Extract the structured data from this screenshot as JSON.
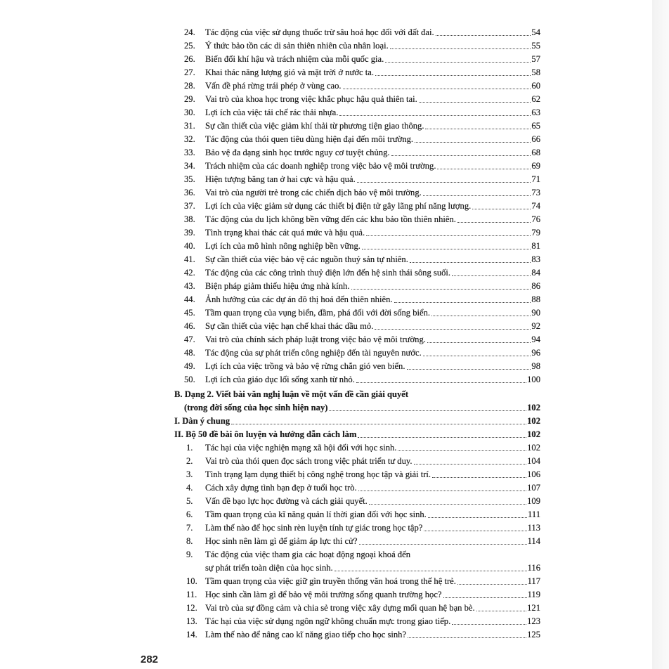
{
  "part1_items": [
    {
      "num": "24.",
      "text": "Tác động của việc sử dụng thuốc trừ sâu hoá học đối với đất đai.",
      "page": "54"
    },
    {
      "num": "25.",
      "text": "Ý thức bảo tồn các di sản thiên nhiên của nhân loại.",
      "page": "55"
    },
    {
      "num": "26.",
      "text": "Biến đổi khí hậu và trách nhiệm của mỗi quốc gia.",
      "page": "57"
    },
    {
      "num": "27.",
      "text": "Khai thác năng lượng gió và mặt trời ở nước ta.",
      "page": "58"
    },
    {
      "num": "28.",
      "text": "Vấn đề phá rừng trái phép ở vùng cao.",
      "page": "60"
    },
    {
      "num": "29.",
      "text": "Vai trò của khoa học trong việc khắc phục hậu quả thiên tai.",
      "page": "62"
    },
    {
      "num": "30.",
      "text": "Lợi ích của việc tái chế rác thải nhựa.",
      "page": "63"
    },
    {
      "num": "31.",
      "text": "Sự cần thiết của việc giảm khí thải từ phương tiện giao thông.",
      "page": "65"
    },
    {
      "num": "32.",
      "text": "Tác động của thói quen tiêu dùng hiện đại đến môi trường.",
      "page": "66"
    },
    {
      "num": "33.",
      "text": "Bảo vệ đa dạng sinh học trước nguy cơ tuyệt chủng.",
      "page": "68"
    },
    {
      "num": "34.",
      "text": "Trách nhiệm của các doanh nghiệp trong việc bảo vệ môi trường.",
      "page": "69"
    },
    {
      "num": "35.",
      "text": "Hiện tượng băng tan ở hai cực và hậu quả.",
      "page": "71"
    },
    {
      "num": "36.",
      "text": "Vai trò của người trẻ trong các chiến dịch bảo vệ môi trường.",
      "page": "73"
    },
    {
      "num": "37.",
      "text": "Lợi ích của việc giảm sử dụng các thiết bị điện tử gây lãng phí năng lượng.",
      "page": "74"
    },
    {
      "num": "38.",
      "text": "Tác động của du lịch không bền vững đến các khu bảo tồn thiên nhiên.",
      "page": "76"
    },
    {
      "num": "39.",
      "text": "Tình trạng khai thác cát quá mức và hậu quả.",
      "page": "79"
    },
    {
      "num": "40.",
      "text": "Lợi ích của mô hình nông nghiệp bền vững.",
      "page": "81"
    },
    {
      "num": "41.",
      "text": "Sự cần thiết của việc bảo vệ các nguồn thuỷ sản tự nhiên.",
      "page": "83"
    },
    {
      "num": "42.",
      "text": "Tác động của các công trình thuỷ điện lớn đến hệ sinh thái sông suối.",
      "page": "84"
    },
    {
      "num": "43.",
      "text": "Biện pháp giảm thiểu hiệu ứng nhà kính.",
      "page": "86"
    },
    {
      "num": "44.",
      "text": "Ảnh hưởng của các dự án đô thị hoá đến thiên nhiên.",
      "page": "88"
    },
    {
      "num": "45.",
      "text": "Tầm quan trọng của vụng biển, đầm, phá đối với đời sống biển.",
      "page": "90"
    },
    {
      "num": "46.",
      "text": "Sự cần thiết của việc hạn chế khai thác dầu mỏ.",
      "page": "92"
    },
    {
      "num": "47.",
      "text": "Vai trò của chính sách pháp luật trong việc bảo vệ môi trường.",
      "page": "94"
    },
    {
      "num": "48.",
      "text": "Tác động của sự phát triển công nghiệp đến tài nguyên nước.",
      "page": "96"
    },
    {
      "num": "49.",
      "text": "Lợi ích của việc trồng và bảo vệ rừng chắn gió ven biển.",
      "page": "98"
    },
    {
      "num": "50.",
      "text": "Lợi ích của giáo dục lối sống xanh từ nhỏ.",
      "page": "100"
    }
  ],
  "section_b": {
    "line1": "B. Dạng 2. Viết bài văn nghị luận về một vấn đề cần giải quyết",
    "line2": "(trong đời sống của học sinh hiện nay)",
    "page": "102"
  },
  "section_i": {
    "text": "I. Dàn ý chung",
    "page": "102"
  },
  "section_ii": {
    "text": "II. Bộ 50 đề bài ôn luyện và hướng dẫn cách làm",
    "page": "102"
  },
  "part2_items": [
    {
      "num": "1.",
      "text": "Tác hại của việc nghiện mạng xã hội đối với học sinh.",
      "page": "102"
    },
    {
      "num": "2.",
      "text": "Vai trò của thói quen đọc sách trong việc phát triển tư duy.",
      "page": "104"
    },
    {
      "num": "3.",
      "text": "Tình trạng lạm dụng thiết bị công nghệ trong học tập và giải trí.",
      "page": "106"
    },
    {
      "num": "4.",
      "text": "Cách xây dựng tình bạn đẹp ở tuổi học trò.",
      "page": "107"
    },
    {
      "num": "5.",
      "text": "Vấn đề bạo lực học đường và cách giải quyết.",
      "page": "109"
    },
    {
      "num": "6.",
      "text": "Tầm quan trọng của kĩ năng quản lí thời gian đối với học sinh.",
      "page": "111"
    },
    {
      "num": "7.",
      "text": "Làm thế nào để học sinh rèn luyện tính tự giác trong học tập?",
      "page": "113"
    },
    {
      "num": "8.",
      "text": "Học sinh nên làm gì để giảm áp lực thi cử?",
      "page": "114"
    },
    {
      "num": "9.",
      "text": "Tác động của việc tham gia các hoạt động ngoại khoá đến",
      "text2": "sự phát triển toàn diện của học sinh.",
      "page": "116"
    },
    {
      "num": "10.",
      "text": "Tầm quan trọng của việc giữ gìn truyền thống văn hoá trong thế hệ trẻ.",
      "page": "117"
    },
    {
      "num": "11.",
      "text": "Học sinh cần làm gì để bảo vệ môi trường sống quanh trường học?",
      "page": "119"
    },
    {
      "num": "12.",
      "text": "Vai trò của sự đồng cảm và chia sẻ trong việc xây dựng mối quan hệ bạn bè.",
      "page": "121"
    },
    {
      "num": "13.",
      "text": "Tác hại của việc sử dụng ngôn ngữ không chuẩn mực trong giao tiếp.",
      "page": "123"
    },
    {
      "num": "14.",
      "text": "Làm thế nào để nâng cao kĩ năng giao tiếp cho học sinh?",
      "page": "125"
    }
  ],
  "page_number": "282"
}
